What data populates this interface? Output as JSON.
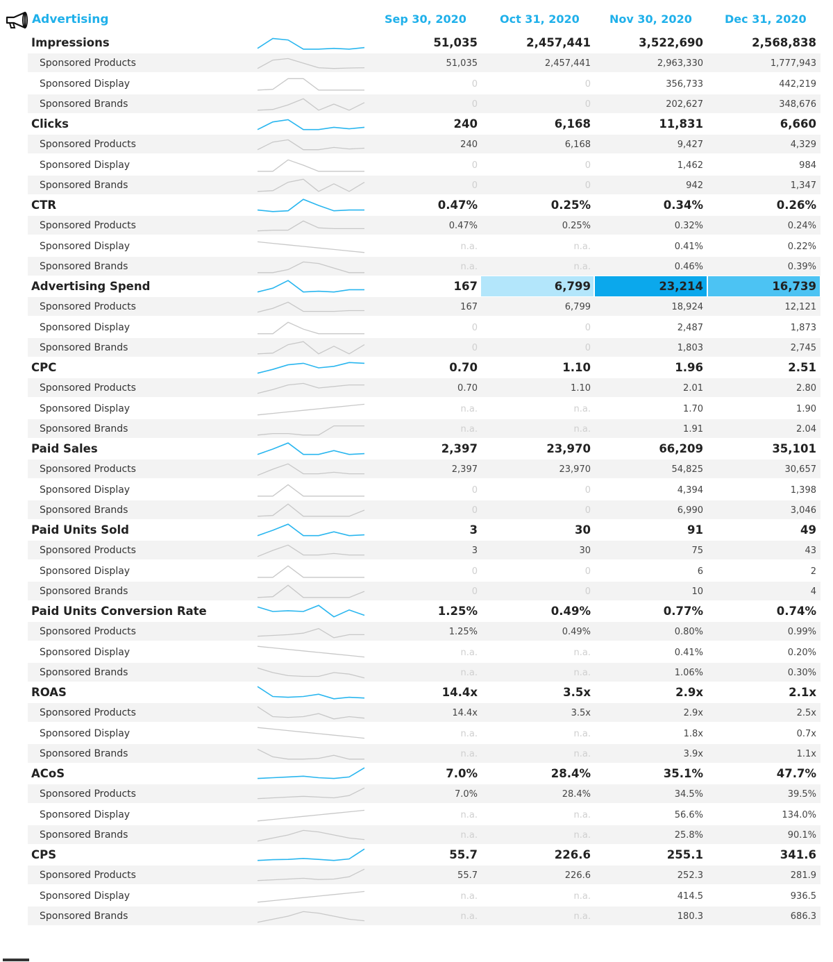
{
  "section": {
    "title": "Advertising",
    "icon": "megaphone-icon",
    "accent": "#1fb0ea",
    "columns": [
      "Sep 30, 2020",
      "Oct 31, 2020",
      "Nov 30, 2020",
      "Dec 31, 2020"
    ]
  },
  "rows": [
    {
      "label": "Impressions",
      "type": "main",
      "values": [
        "51,035",
        "2,457,441",
        "3,522,690",
        "2,568,838"
      ]
    },
    {
      "label": "Sponsored Products",
      "type": "sub",
      "values": [
        "51,035",
        "2,457,441",
        "2,963,330",
        "1,777,943"
      ]
    },
    {
      "label": "Sponsored Display",
      "type": "sub",
      "values": [
        "0",
        "0",
        "356,733",
        "442,219"
      ]
    },
    {
      "label": "Sponsored Brands",
      "type": "sub",
      "values": [
        "0",
        "0",
        "202,627",
        "348,676"
      ]
    },
    {
      "label": "Clicks",
      "type": "main",
      "values": [
        "240",
        "6,168",
        "11,831",
        "6,660"
      ]
    },
    {
      "label": "Sponsored Products",
      "type": "sub",
      "values": [
        "240",
        "6,168",
        "9,427",
        "4,329"
      ]
    },
    {
      "label": "Sponsored Display",
      "type": "sub",
      "values": [
        "0",
        "0",
        "1,462",
        "984"
      ]
    },
    {
      "label": "Sponsored Brands",
      "type": "sub",
      "values": [
        "0",
        "0",
        "942",
        "1,347"
      ]
    },
    {
      "label": "CTR",
      "type": "main",
      "values": [
        "0.47%",
        "0.25%",
        "0.34%",
        "0.26%"
      ]
    },
    {
      "label": "Sponsored Products",
      "type": "sub",
      "values": [
        "0.47%",
        "0.25%",
        "0.32%",
        "0.24%"
      ]
    },
    {
      "label": "Sponsored Display",
      "type": "sub",
      "values": [
        "n.a.",
        "n.a.",
        "0.41%",
        "0.22%"
      ]
    },
    {
      "label": "Sponsored Brands",
      "type": "sub",
      "values": [
        "n.a.",
        "n.a.",
        "0.46%",
        "0.39%"
      ]
    },
    {
      "label": "Advertising Spend",
      "type": "main",
      "values": [
        "167",
        "6,799",
        "23,214",
        "16,739"
      ],
      "highlight": [
        null,
        "#b3e6fb",
        "#0ba8ec",
        "#4cc3f3"
      ]
    },
    {
      "label": "Sponsored Products",
      "type": "sub",
      "values": [
        "167",
        "6,799",
        "18,924",
        "12,121"
      ]
    },
    {
      "label": "Sponsored Display",
      "type": "sub",
      "values": [
        "0",
        "0",
        "2,487",
        "1,873"
      ]
    },
    {
      "label": "Sponsored Brands",
      "type": "sub",
      "values": [
        "0",
        "0",
        "1,803",
        "2,745"
      ]
    },
    {
      "label": "CPC",
      "type": "main",
      "values": [
        "0.70",
        "1.10",
        "1.96",
        "2.51"
      ]
    },
    {
      "label": "Sponsored Products",
      "type": "sub",
      "values": [
        "0.70",
        "1.10",
        "2.01",
        "2.80"
      ]
    },
    {
      "label": "Sponsored Display",
      "type": "sub",
      "values": [
        "n.a.",
        "n.a.",
        "1.70",
        "1.90"
      ]
    },
    {
      "label": "Sponsored Brands",
      "type": "sub",
      "values": [
        "n.a.",
        "n.a.",
        "1.91",
        "2.04"
      ]
    },
    {
      "label": "Paid Sales",
      "type": "main",
      "values": [
        "2,397",
        "23,970",
        "66,209",
        "35,101"
      ]
    },
    {
      "label": "Sponsored Products",
      "type": "sub",
      "values": [
        "2,397",
        "23,970",
        "54,825",
        "30,657"
      ]
    },
    {
      "label": "Sponsored Display",
      "type": "sub",
      "values": [
        "0",
        "0",
        "4,394",
        "1,398"
      ]
    },
    {
      "label": "Sponsored Brands",
      "type": "sub",
      "values": [
        "0",
        "0",
        "6,990",
        "3,046"
      ]
    },
    {
      "label": "Paid Units Sold",
      "type": "main",
      "values": [
        "3",
        "30",
        "91",
        "49"
      ]
    },
    {
      "label": "Sponsored Products",
      "type": "sub",
      "values": [
        "3",
        "30",
        "75",
        "43"
      ]
    },
    {
      "label": "Sponsored Display",
      "type": "sub",
      "values": [
        "0",
        "0",
        "6",
        "2"
      ]
    },
    {
      "label": "Sponsored Brands",
      "type": "sub",
      "values": [
        "0",
        "0",
        "10",
        "4"
      ]
    },
    {
      "label": "Paid Units Conversion Rate",
      "type": "main",
      "values": [
        "1.25%",
        "0.49%",
        "0.77%",
        "0.74%"
      ]
    },
    {
      "label": "Sponsored Products",
      "type": "sub",
      "values": [
        "1.25%",
        "0.49%",
        "0.80%",
        "0.99%"
      ]
    },
    {
      "label": "Sponsored Display",
      "type": "sub",
      "values": [
        "n.a.",
        "n.a.",
        "0.41%",
        "0.20%"
      ]
    },
    {
      "label": "Sponsored Brands",
      "type": "sub",
      "values": [
        "n.a.",
        "n.a.",
        "1.06%",
        "0.30%"
      ]
    },
    {
      "label": "ROAS",
      "type": "main",
      "values": [
        "14.4x",
        "3.5x",
        "2.9x",
        "2.1x"
      ]
    },
    {
      "label": "Sponsored Products",
      "type": "sub",
      "values": [
        "14.4x",
        "3.5x",
        "2.9x",
        "2.5x"
      ]
    },
    {
      "label": "Sponsored Display",
      "type": "sub",
      "values": [
        "n.a.",
        "n.a.",
        "1.8x",
        "0.7x"
      ]
    },
    {
      "label": "Sponsored Brands",
      "type": "sub",
      "values": [
        "n.a.",
        "n.a.",
        "3.9x",
        "1.1x"
      ]
    },
    {
      "label": "ACoS",
      "type": "main",
      "values": [
        "7.0%",
        "28.4%",
        "35.1%",
        "47.7%"
      ]
    },
    {
      "label": "Sponsored Products",
      "type": "sub",
      "values": [
        "7.0%",
        "28.4%",
        "34.5%",
        "39.5%"
      ]
    },
    {
      "label": "Sponsored Display",
      "type": "sub",
      "values": [
        "n.a.",
        "n.a.",
        "56.6%",
        "134.0%"
      ]
    },
    {
      "label": "Sponsored Brands",
      "type": "sub",
      "values": [
        "n.a.",
        "n.a.",
        "25.8%",
        "90.1%"
      ]
    },
    {
      "label": "CPS",
      "type": "main",
      "values": [
        "55.7",
        "226.6",
        "255.1",
        "341.6"
      ]
    },
    {
      "label": "Sponsored Products",
      "type": "sub",
      "values": [
        "55.7",
        "226.6",
        "252.3",
        "281.9"
      ]
    },
    {
      "label": "Sponsored Display",
      "type": "sub",
      "values": [
        "n.a.",
        "n.a.",
        "414.5",
        "936.5"
      ]
    },
    {
      "label": "Sponsored Brands",
      "type": "sub",
      "values": [
        "n.a.",
        "n.a.",
        "180.3",
        "686.3"
      ]
    }
  ],
  "sparklines": {
    "main_color": "#29b6ef",
    "sub_color": "#c8c8c8",
    "shapes": [
      [
        0.85,
        0.2,
        0.3,
        0.9,
        0.9,
        0.85,
        0.9,
        0.8
      ],
      [
        0.85,
        0.3,
        0.2,
        0.5,
        0.8,
        0.85,
        0.82,
        0.8
      ],
      [
        0.9,
        0.85,
        0.15,
        0.15,
        0.9,
        0.9,
        0.9,
        0.9
      ],
      [
        0.9,
        0.85,
        0.55,
        0.15,
        0.9,
        0.5,
        0.9,
        0.4
      ],
      [
        0.85,
        0.35,
        0.2,
        0.85,
        0.85,
        0.7,
        0.8,
        0.7
      ],
      [
        0.85,
        0.35,
        0.2,
        0.85,
        0.85,
        0.7,
        0.8,
        0.75
      ],
      [
        0.9,
        0.9,
        0.15,
        0.5,
        0.9,
        0.9,
        0.9,
        0.9
      ],
      [
        0.9,
        0.85,
        0.3,
        0.1,
        0.9,
        0.4,
        0.9,
        0.3
      ],
      [
        0.8,
        0.9,
        0.85,
        0.1,
        0.5,
        0.85,
        0.8,
        0.8
      ],
      [
        0.85,
        0.8,
        0.8,
        0.2,
        0.65,
        0.7,
        0.7,
        0.7
      ],
      [
        0.2,
        0.3,
        0.4,
        0.5,
        0.6,
        0.7,
        0.8,
        0.9
      ],
      [
        0.9,
        0.9,
        0.7,
        0.2,
        0.3,
        0.6,
        0.9,
        0.9
      ],
      [
        0.85,
        0.6,
        0.1,
        0.85,
        0.8,
        0.85,
        0.7,
        0.7
      ],
      [
        0.85,
        0.6,
        0.2,
        0.8,
        0.8,
        0.8,
        0.75,
        0.75
      ],
      [
        0.9,
        0.9,
        0.15,
        0.6,
        0.9,
        0.9,
        0.9,
        0.9
      ],
      [
        0.9,
        0.85,
        0.3,
        0.1,
        0.9,
        0.4,
        0.9,
        0.3
      ],
      [
        0.85,
        0.6,
        0.3,
        0.2,
        0.5,
        0.4,
        0.15,
        0.2
      ],
      [
        0.85,
        0.6,
        0.3,
        0.2,
        0.5,
        0.4,
        0.3,
        0.3
      ],
      [
        0.9,
        0.8,
        0.7,
        0.6,
        0.5,
        0.4,
        0.3,
        0.2
      ],
      [
        0.9,
        0.8,
        0.8,
        0.9,
        0.9,
        0.3,
        0.3,
        0.3
      ],
      [
        0.85,
        0.5,
        0.1,
        0.85,
        0.85,
        0.6,
        0.85,
        0.8
      ],
      [
        0.9,
        0.5,
        0.15,
        0.8,
        0.8,
        0.7,
        0.8,
        0.8
      ],
      [
        0.9,
        0.9,
        0.15,
        0.9,
        0.9,
        0.9,
        0.9,
        0.9
      ],
      [
        0.9,
        0.85,
        0.1,
        0.9,
        0.9,
        0.9,
        0.9,
        0.5
      ],
      [
        0.85,
        0.5,
        0.1,
        0.85,
        0.85,
        0.6,
        0.85,
        0.8
      ],
      [
        0.9,
        0.5,
        0.15,
        0.8,
        0.8,
        0.7,
        0.8,
        0.8
      ],
      [
        0.9,
        0.9,
        0.15,
        0.9,
        0.9,
        0.9,
        0.9,
        0.9
      ],
      [
        0.9,
        0.85,
        0.1,
        0.9,
        0.9,
        0.9,
        0.9,
        0.5
      ],
      [
        0.2,
        0.5,
        0.45,
        0.5,
        0.1,
        0.85,
        0.4,
        0.75
      ],
      [
        0.8,
        0.75,
        0.7,
        0.6,
        0.3,
        0.9,
        0.7,
        0.7
      ],
      [
        0.1,
        0.2,
        0.3,
        0.4,
        0.5,
        0.6,
        0.7,
        0.8
      ],
      [
        0.2,
        0.5,
        0.7,
        0.75,
        0.75,
        0.5,
        0.6,
        0.85
      ],
      [
        0.1,
        0.75,
        0.8,
        0.75,
        0.6,
        0.9,
        0.8,
        0.85
      ],
      [
        0.1,
        0.75,
        0.8,
        0.75,
        0.55,
        0.9,
        0.75,
        0.85
      ],
      [
        0.1,
        0.2,
        0.3,
        0.4,
        0.5,
        0.6,
        0.7,
        0.8
      ],
      [
        0.2,
        0.7,
        0.85,
        0.85,
        0.8,
        0.6,
        0.85,
        0.85
      ],
      [
        0.8,
        0.75,
        0.7,
        0.65,
        0.75,
        0.8,
        0.7,
        0.1
      ],
      [
        0.8,
        0.75,
        0.7,
        0.65,
        0.7,
        0.75,
        0.6,
        0.1
      ],
      [
        0.9,
        0.8,
        0.7,
        0.6,
        0.5,
        0.4,
        0.3,
        0.2
      ],
      [
        0.9,
        0.7,
        0.5,
        0.2,
        0.3,
        0.5,
        0.7,
        0.8
      ],
      [
        0.85,
        0.8,
        0.78,
        0.72,
        0.78,
        0.85,
        0.75,
        0.1
      ],
      [
        0.85,
        0.8,
        0.75,
        0.7,
        0.78,
        0.75,
        0.6,
        0.1
      ],
      [
        0.9,
        0.8,
        0.7,
        0.6,
        0.5,
        0.4,
        0.3,
        0.2
      ],
      [
        0.9,
        0.7,
        0.5,
        0.2,
        0.3,
        0.5,
        0.7,
        0.8
      ]
    ]
  }
}
